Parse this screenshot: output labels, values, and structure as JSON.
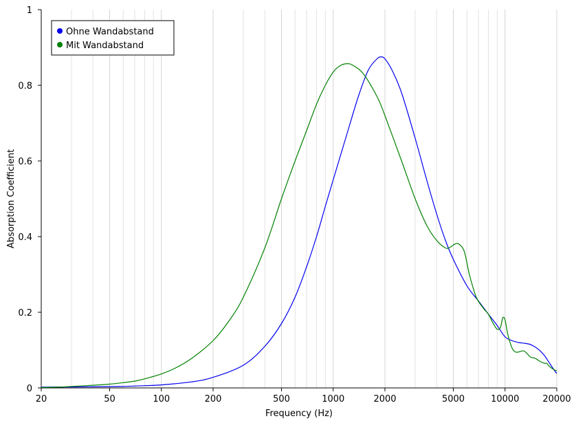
{
  "chart_data": {
    "type": "line",
    "xlabel": "Frequency (Hz)",
    "ylabel": "Absorption Coefficient",
    "x_scale": "log",
    "xlim": [
      20,
      20000
    ],
    "ylim": [
      0,
      1
    ],
    "x_tick_labels": [
      "20",
      "50",
      "100",
      "200",
      "500",
      "1000",
      "2000",
      "5000",
      "10000",
      "20000"
    ],
    "x_ticks": [
      20,
      50,
      100,
      200,
      500,
      1000,
      2000,
      5000,
      10000,
      20000
    ],
    "x_minor_gridlines": [
      30,
      40,
      60,
      70,
      80,
      90,
      300,
      400,
      600,
      700,
      800,
      900,
      3000,
      4000,
      6000,
      7000,
      8000,
      9000
    ],
    "y_tick_labels": [
      "0",
      "0.2",
      "0.4",
      "0.6",
      "0.8",
      "1"
    ],
    "y_ticks": [
      0,
      0.2,
      0.4,
      0.6,
      0.8,
      1
    ],
    "grid": "vertical",
    "legend_position": "top-left",
    "series": [
      {
        "name": "Ohne Wandabstand",
        "color": "#0000ee",
        "points": [
          [
            20,
            0.002
          ],
          [
            40,
            0.003
          ],
          [
            60,
            0.004
          ],
          [
            80,
            0.006
          ],
          [
            100,
            0.008
          ],
          [
            150,
            0.016
          ],
          [
            200,
            0.028
          ],
          [
            300,
            0.06
          ],
          [
            400,
            0.11
          ],
          [
            500,
            0.17
          ],
          [
            600,
            0.24
          ],
          [
            700,
            0.32
          ],
          [
            800,
            0.4
          ],
          [
            900,
            0.48
          ],
          [
            1000,
            0.55
          ],
          [
            1200,
            0.67
          ],
          [
            1400,
            0.77
          ],
          [
            1600,
            0.84
          ],
          [
            1800,
            0.87
          ],
          [
            1900,
            0.875
          ],
          [
            2000,
            0.87
          ],
          [
            2200,
            0.84
          ],
          [
            2500,
            0.78
          ],
          [
            3000,
            0.66
          ],
          [
            3500,
            0.55
          ],
          [
            4000,
            0.46
          ],
          [
            4500,
            0.39
          ],
          [
            5000,
            0.34
          ],
          [
            6000,
            0.27
          ],
          [
            7000,
            0.23
          ],
          [
            8000,
            0.195
          ],
          [
            9000,
            0.165
          ],
          [
            10000,
            0.135
          ],
          [
            11000,
            0.125
          ],
          [
            12000,
            0.12
          ],
          [
            13000,
            0.118
          ],
          [
            14000,
            0.115
          ],
          [
            15000,
            0.108
          ],
          [
            16000,
            0.098
          ],
          [
            17000,
            0.085
          ],
          [
            18000,
            0.068
          ],
          [
            19000,
            0.052
          ],
          [
            20000,
            0.038
          ]
        ]
      },
      {
        "name": "Mit Wandabstand",
        "color": "#008000",
        "points": [
          [
            20,
            0.001
          ],
          [
            25,
            0.002
          ],
          [
            30,
            0.004
          ],
          [
            40,
            0.007
          ],
          [
            50,
            0.01
          ],
          [
            60,
            0.014
          ],
          [
            70,
            0.018
          ],
          [
            80,
            0.024
          ],
          [
            100,
            0.037
          ],
          [
            120,
            0.052
          ],
          [
            150,
            0.078
          ],
          [
            200,
            0.125
          ],
          [
            250,
            0.18
          ],
          [
            300,
            0.24
          ],
          [
            400,
            0.37
          ],
          [
            500,
            0.5
          ],
          [
            600,
            0.6
          ],
          [
            700,
            0.68
          ],
          [
            800,
            0.75
          ],
          [
            900,
            0.8
          ],
          [
            1000,
            0.835
          ],
          [
            1100,
            0.852
          ],
          [
            1200,
            0.857
          ],
          [
            1300,
            0.853
          ],
          [
            1500,
            0.83
          ],
          [
            1800,
            0.77
          ],
          [
            2000,
            0.72
          ],
          [
            2500,
            0.6
          ],
          [
            3000,
            0.5
          ],
          [
            3500,
            0.43
          ],
          [
            4000,
            0.39
          ],
          [
            4500,
            0.37
          ],
          [
            4800,
            0.372
          ],
          [
            5100,
            0.38
          ],
          [
            5400,
            0.38
          ],
          [
            5800,
            0.36
          ],
          [
            6200,
            0.3
          ],
          [
            6800,
            0.24
          ],
          [
            7500,
            0.21
          ],
          [
            8000,
            0.195
          ],
          [
            8500,
            0.172
          ],
          [
            9000,
            0.155
          ],
          [
            9400,
            0.16
          ],
          [
            9700,
            0.185
          ],
          [
            10000,
            0.18
          ],
          [
            10400,
            0.14
          ],
          [
            11000,
            0.105
          ],
          [
            11500,
            0.095
          ],
          [
            12000,
            0.095
          ],
          [
            12800,
            0.098
          ],
          [
            13500,
            0.09
          ],
          [
            14000,
            0.082
          ],
          [
            15000,
            0.078
          ],
          [
            16000,
            0.07
          ],
          [
            17000,
            0.065
          ],
          [
            17500,
            0.065
          ],
          [
            18000,
            0.058
          ],
          [
            19000,
            0.05
          ],
          [
            20000,
            0.045
          ]
        ]
      }
    ]
  }
}
